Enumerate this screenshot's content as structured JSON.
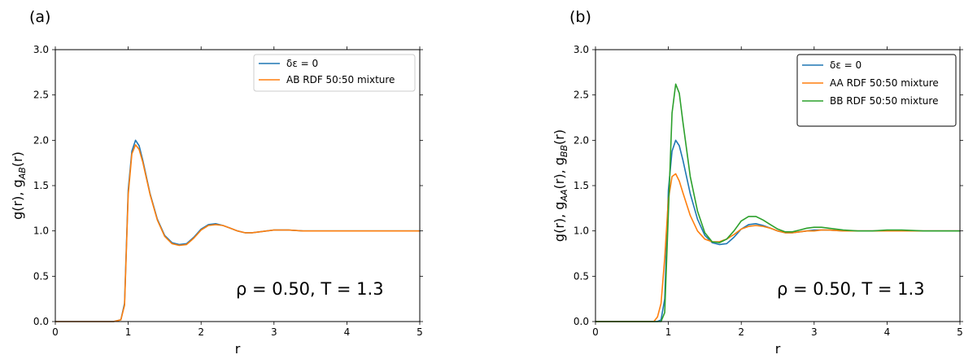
{
  "panels_text": {
    "a": {
      "panel_label": "(a)",
      "annotation": "ρ = 0.50, T = 1.3",
      "legend": [
        "δε = 0",
        "AB RDF 50:50 mixture"
      ]
    },
    "b": {
      "panel_label": "(b)",
      "annotation": "ρ = 0.50, T = 1.3",
      "legend": [
        "δε = 0",
        "AA RDF 50:50 mixture",
        "BB RDF 50:50 mixture"
      ]
    }
  },
  "chart_data": [
    {
      "type": "line",
      "panel_label": "(a)",
      "xlabel": "r",
      "ylabel": "g(r), gAB(r)",
      "xlim": [
        0,
        5
      ],
      "ylim": [
        0,
        3.0
      ],
      "xticks": [
        0,
        1,
        2,
        3,
        4,
        5
      ],
      "yticks": [
        0.0,
        0.5,
        1.0,
        1.5,
        2.0,
        2.5,
        3.0
      ],
      "grid": false,
      "legend_position": "top-right",
      "annotation": "ρ = 0.50, T = 1.3",
      "series": [
        {
          "name": "δε = 0",
          "color": "#1f77b4",
          "x": [
            0,
            0.8,
            0.9,
            0.95,
            1.0,
            1.05,
            1.1,
            1.15,
            1.2,
            1.3,
            1.4,
            1.5,
            1.6,
            1.7,
            1.8,
            1.9,
            2.0,
            2.1,
            2.2,
            2.3,
            2.4,
            2.5,
            2.6,
            2.7,
            2.8,
            2.9,
            3.0,
            3.1,
            3.2,
            3.4,
            3.6,
            3.8,
            4.0,
            4.5,
            5.0
          ],
          "y": [
            0,
            0,
            0.02,
            0.2,
            1.45,
            1.88,
            2.0,
            1.94,
            1.78,
            1.41,
            1.13,
            0.95,
            0.87,
            0.85,
            0.86,
            0.93,
            1.02,
            1.07,
            1.08,
            1.06,
            1.03,
            1.0,
            0.98,
            0.98,
            0.99,
            1.0,
            1.01,
            1.01,
            1.01,
            1.0,
            1.0,
            1.0,
            1.0,
            1.0,
            1.0
          ]
        },
        {
          "name": "AB RDF 50:50 mixture",
          "color": "#ff7f0e",
          "x": [
            0,
            0.8,
            0.9,
            0.95,
            1.0,
            1.05,
            1.1,
            1.15,
            1.2,
            1.3,
            1.4,
            1.5,
            1.6,
            1.7,
            1.8,
            1.9,
            2.0,
            2.1,
            2.2,
            2.3,
            2.4,
            2.5,
            2.6,
            2.7,
            2.8,
            2.9,
            3.0,
            3.1,
            3.2,
            3.4,
            3.6,
            3.8,
            4.0,
            4.5,
            5.0
          ],
          "y": [
            0,
            0,
            0.02,
            0.18,
            1.4,
            1.85,
            1.95,
            1.9,
            1.76,
            1.4,
            1.12,
            0.94,
            0.86,
            0.84,
            0.85,
            0.92,
            1.01,
            1.06,
            1.07,
            1.06,
            1.03,
            1.0,
            0.98,
            0.98,
            0.99,
            1.0,
            1.01,
            1.01,
            1.01,
            1.0,
            1.0,
            1.0,
            1.0,
            1.0,
            1.0
          ]
        }
      ]
    },
    {
      "type": "line",
      "panel_label": "(b)",
      "xlabel": "r",
      "ylabel": "g(r), gAA(r), gBB(r)",
      "xlim": [
        0,
        5
      ],
      "ylim": [
        0,
        3.0
      ],
      "xticks": [
        0,
        1,
        2,
        3,
        4,
        5
      ],
      "yticks": [
        0.0,
        0.5,
        1.0,
        1.5,
        2.0,
        2.5,
        3.0
      ],
      "grid": false,
      "legend_position": "top-right",
      "annotation": "ρ = 0.50, T = 1.3",
      "series": [
        {
          "name": "δε = 0",
          "color": "#1f77b4",
          "x": [
            0,
            0.85,
            0.9,
            0.95,
            1.0,
            1.05,
            1.1,
            1.15,
            1.2,
            1.3,
            1.4,
            1.5,
            1.6,
            1.7,
            1.8,
            1.9,
            2.0,
            2.1,
            2.2,
            2.3,
            2.4,
            2.5,
            2.6,
            2.7,
            2.8,
            2.9,
            3.0,
            3.1,
            3.2,
            3.4,
            3.6,
            3.8,
            4.0,
            4.5,
            5.0
          ],
          "y": [
            0,
            0,
            0.02,
            0.25,
            1.45,
            1.88,
            2.0,
            1.94,
            1.78,
            1.41,
            1.13,
            0.95,
            0.87,
            0.85,
            0.86,
            0.93,
            1.02,
            1.07,
            1.08,
            1.06,
            1.03,
            1.0,
            0.98,
            0.98,
            0.99,
            1.0,
            1.01,
            1.01,
            1.01,
            1.0,
            1.0,
            1.0,
            1.0,
            1.0,
            1.0
          ]
        },
        {
          "name": "AA RDF 50:50 mixture",
          "color": "#ff7f0e",
          "x": [
            0,
            0.8,
            0.85,
            0.9,
            0.95,
            1.0,
            1.05,
            1.1,
            1.15,
            1.2,
            1.3,
            1.4,
            1.5,
            1.6,
            1.7,
            1.8,
            1.9,
            2.0,
            2.1,
            2.2,
            2.3,
            2.4,
            2.5,
            2.6,
            2.7,
            2.8,
            2.9,
            3.0,
            3.1,
            3.2,
            3.4,
            3.6,
            3.8,
            4.0,
            4.5,
            5.0
          ],
          "y": [
            0,
            0,
            0.05,
            0.2,
            0.7,
            1.35,
            1.6,
            1.63,
            1.55,
            1.42,
            1.17,
            1.0,
            0.91,
            0.88,
            0.88,
            0.91,
            0.96,
            1.02,
            1.05,
            1.06,
            1.05,
            1.03,
            1.0,
            0.98,
            0.98,
            0.99,
            1.0,
            1.0,
            1.01,
            1.01,
            1.0,
            1.0,
            1.0,
            1.0,
            1.0,
            1.0
          ]
        },
        {
          "name": "BB RDF 50:50 mixture",
          "color": "#2ca02c",
          "x": [
            0,
            0.9,
            0.95,
            1.0,
            1.05,
            1.1,
            1.15,
            1.2,
            1.3,
            1.4,
            1.5,
            1.6,
            1.7,
            1.8,
            1.9,
            2.0,
            2.1,
            2.2,
            2.3,
            2.4,
            2.5,
            2.6,
            2.7,
            2.8,
            2.9,
            3.0,
            3.1,
            3.2,
            3.4,
            3.6,
            3.8,
            4.0,
            4.2,
            4.5,
            5.0
          ],
          "y": [
            0,
            0,
            0.1,
            1.2,
            2.3,
            2.62,
            2.52,
            2.2,
            1.6,
            1.22,
            0.98,
            0.88,
            0.87,
            0.91,
            1.0,
            1.11,
            1.16,
            1.16,
            1.12,
            1.07,
            1.02,
            0.99,
            0.99,
            1.01,
            1.03,
            1.04,
            1.04,
            1.03,
            1.01,
            1.0,
            1.0,
            1.01,
            1.01,
            1.0,
            1.0
          ]
        }
      ]
    }
  ]
}
